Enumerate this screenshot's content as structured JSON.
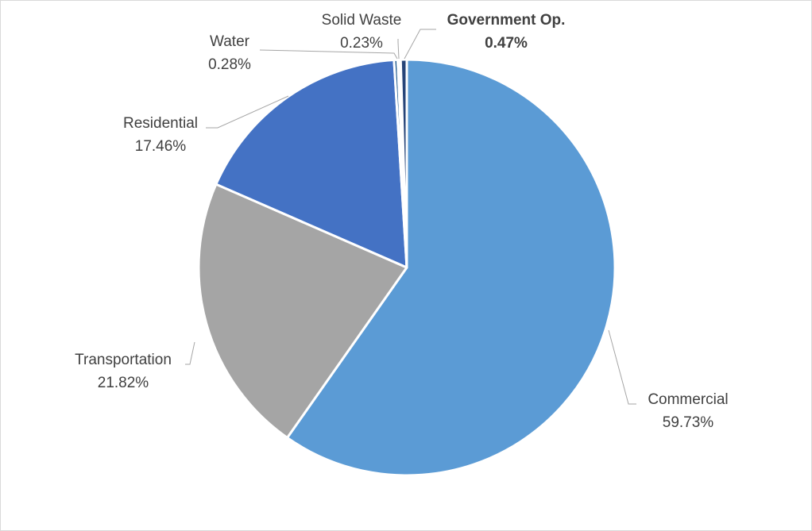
{
  "chart_data": {
    "type": "pie",
    "title": "",
    "legend": "none",
    "slices": [
      {
        "label": "Commercial",
        "value": 59.73,
        "display": "59.73%",
        "color": "#5b9bd5",
        "emphasis": false
      },
      {
        "label": "Transportation",
        "value": 21.82,
        "display": "21.82%",
        "color": "#a5a5a5",
        "emphasis": false
      },
      {
        "label": "Residential",
        "value": 17.46,
        "display": "17.46%",
        "color": "#4472c4",
        "emphasis": false
      },
      {
        "label": "Water",
        "value": 0.28,
        "display": "0.28%",
        "color": "#255e91",
        "emphasis": false
      },
      {
        "label": "Solid Waste",
        "value": 0.23,
        "display": "0.23%",
        "color": "#ffffff",
        "emphasis": false
      },
      {
        "label": "Government Op.",
        "value": 0.47,
        "display": "0.47%",
        "color": "#264478",
        "emphasis": true
      }
    ]
  }
}
